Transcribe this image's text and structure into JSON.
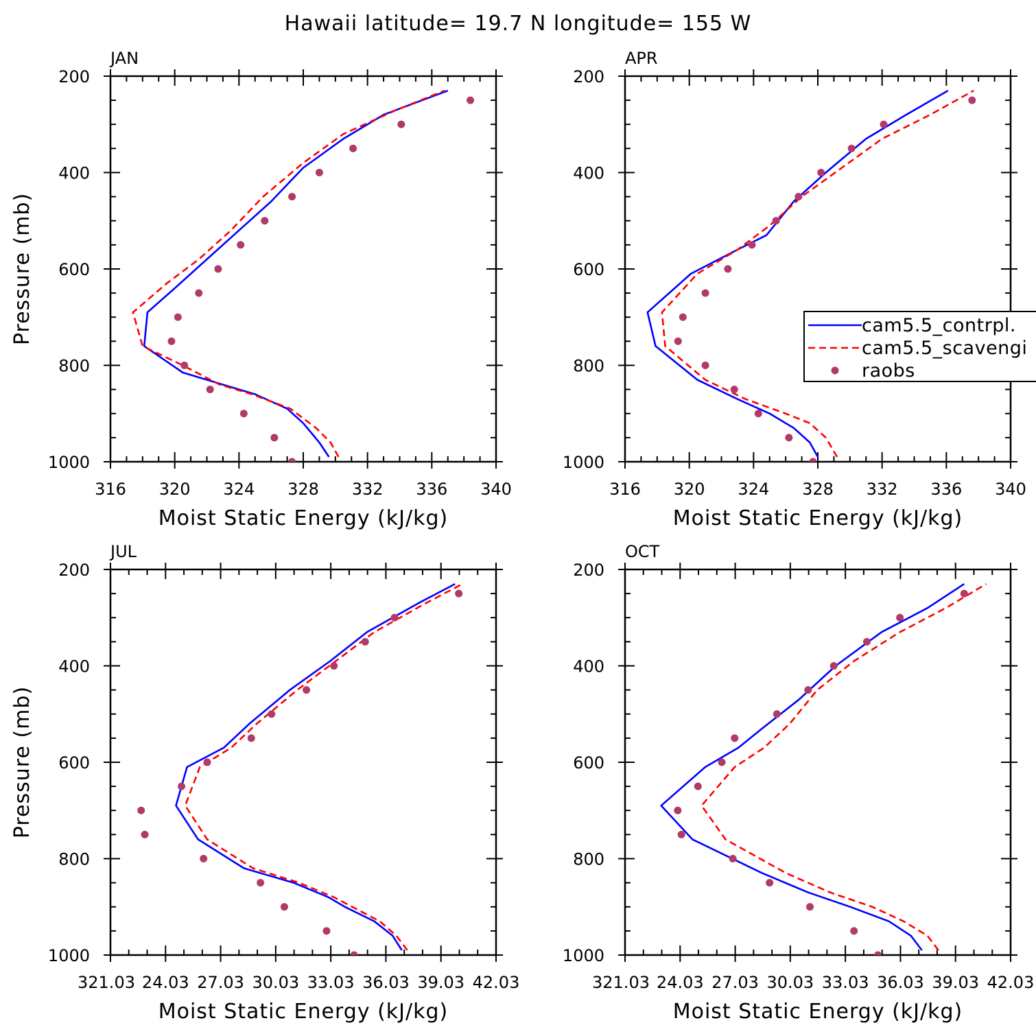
{
  "title": "Hawaii  latitude= 19.7 N longitude= 155 W",
  "colors": {
    "control": "#0000ff",
    "scaveng": "#ff0000",
    "raobs": "#b03a6a",
    "axes": "#000000"
  },
  "legend": {
    "items": [
      {
        "label": "cam5.5_contrpl.",
        "style": "solid-line",
        "color": "#0000ff"
      },
      {
        "label": "cam5.5_scavengi",
        "style": "dashed-line",
        "color": "#ff0000"
      },
      {
        "label": "raobs",
        "style": "marker",
        "color": "#b03a6a"
      }
    ],
    "placement": "right-middle of APR panel, clipped at image edge"
  },
  "chart_data": [
    {
      "type": "line",
      "panel": "JAN",
      "xlabel": "Moist Static Energy (kJ/kg)",
      "ylabel": "Pressure (mb)",
      "xlim": [
        316,
        340
      ],
      "ylim": [
        1000,
        200
      ],
      "y_inverted": true,
      "xticks": [
        "316",
        "320",
        "324",
        "328",
        "332",
        "336",
        "340"
      ],
      "yticks": [
        "200",
        "400",
        "600",
        "800",
        "1000"
      ],
      "series": [
        {
          "name": "cam5.5_contrpl.",
          "style": "solid",
          "points": [
            [
              329.6,
              990
            ],
            [
              329.0,
              960
            ],
            [
              328.0,
              920
            ],
            [
              327.0,
              890
            ],
            [
              325.0,
              860
            ],
            [
              323.0,
              840
            ],
            [
              320.5,
              815
            ],
            [
              318.1,
              760
            ],
            [
              318.3,
              690
            ],
            [
              320.0,
              640
            ],
            [
              322.0,
              580
            ],
            [
              324.0,
              520
            ],
            [
              326.0,
              460
            ],
            [
              328.0,
              390
            ],
            [
              330.5,
              330
            ],
            [
              333.0,
              280
            ],
            [
              337.0,
              230
            ]
          ]
        },
        {
          "name": "cam5.5_scavengi",
          "style": "dashed",
          "points": [
            [
              330.2,
              990
            ],
            [
              329.7,
              960
            ],
            [
              328.8,
              930
            ],
            [
              327.2,
              890
            ],
            [
              324.8,
              860
            ],
            [
              322.8,
              840
            ],
            [
              320.5,
              800
            ],
            [
              318.0,
              760
            ],
            [
              317.4,
              690
            ],
            [
              319.5,
              630
            ],
            [
              321.5,
              580
            ],
            [
              323.5,
              520
            ],
            [
              325.5,
              450
            ],
            [
              328.0,
              380
            ],
            [
              330.5,
              320
            ],
            [
              333.8,
              270
            ],
            [
              336.8,
              230
            ]
          ]
        },
        {
          "name": "raobs",
          "style": "markers",
          "points": [
            [
              338.4,
              250
            ],
            [
              334.1,
              300
            ],
            [
              331.1,
              350
            ],
            [
              329.0,
              400
            ],
            [
              327.3,
              450
            ],
            [
              325.6,
              500
            ],
            [
              324.1,
              550
            ],
            [
              322.7,
              600
            ],
            [
              321.5,
              650
            ],
            [
              320.2,
              700
            ],
            [
              319.8,
              750
            ],
            [
              320.6,
              800
            ],
            [
              322.2,
              850
            ],
            [
              324.3,
              900
            ],
            [
              326.2,
              950
            ],
            [
              327.3,
              1000
            ]
          ]
        }
      ]
    },
    {
      "type": "line",
      "panel": "APR",
      "xlabel": "Moist Static Energy (kJ/kg)",
      "ylabel": "",
      "xlim": [
        316,
        340
      ],
      "ylim": [
        1000,
        200
      ],
      "y_inverted": true,
      "xticks": [
        "316",
        "320",
        "324",
        "328",
        "332",
        "336",
        "340"
      ],
      "yticks": [
        "200",
        "400",
        "600",
        "800",
        "1000"
      ],
      "series": [
        {
          "name": "cam5.5_contrpl.",
          "style": "solid",
          "points": [
            [
              328.0,
              990
            ],
            [
              327.5,
              960
            ],
            [
              326.5,
              930
            ],
            [
              325.0,
              900
            ],
            [
              323.0,
              870
            ],
            [
              320.5,
              830
            ],
            [
              317.9,
              760
            ],
            [
              317.4,
              690
            ],
            [
              320.1,
              610
            ],
            [
              323.0,
              560
            ],
            [
              324.8,
              530
            ],
            [
              326.5,
              460
            ],
            [
              328.5,
              400
            ],
            [
              331.0,
              330
            ],
            [
              333.5,
              280
            ],
            [
              336.1,
              230
            ]
          ]
        },
        {
          "name": "cam5.5_scavengi",
          "style": "dashed",
          "points": [
            [
              329.2,
              990
            ],
            [
              328.5,
              950
            ],
            [
              327.5,
              920
            ],
            [
              326.0,
              900
            ],
            [
              323.5,
              870
            ],
            [
              321.0,
              830
            ],
            [
              318.5,
              760
            ],
            [
              318.3,
              690
            ],
            [
              320.5,
              610
            ],
            [
              323.0,
              560
            ],
            [
              325.0,
              510
            ],
            [
              327.0,
              450
            ],
            [
              329.5,
              390
            ],
            [
              332.0,
              330
            ],
            [
              335.0,
              280
            ],
            [
              337.7,
              230
            ]
          ]
        },
        {
          "name": "raobs",
          "style": "markers",
          "points": [
            [
              337.6,
              250
            ],
            [
              332.1,
              300
            ],
            [
              330.1,
              350
            ],
            [
              328.2,
              400
            ],
            [
              326.8,
              450
            ],
            [
              325.4,
              500
            ],
            [
              323.9,
              550
            ],
            [
              322.4,
              600
            ],
            [
              321.0,
              650
            ],
            [
              319.6,
              700
            ],
            [
              319.3,
              750
            ],
            [
              321.0,
              800
            ],
            [
              322.8,
              850
            ],
            [
              324.3,
              900
            ],
            [
              326.2,
              950
            ],
            [
              327.7,
              1000
            ]
          ]
        }
      ]
    },
    {
      "type": "line",
      "panel": "JUL",
      "xlabel": "Moist Static Energy (kJ/kg)",
      "ylabel": "Pressure (mb)",
      "xlim": [
        321.03,
        342.03
      ],
      "ylim": [
        1000,
        200
      ],
      "y_inverted": true,
      "xticks": [
        "321.03",
        "24.03",
        "27.03",
        "30.03",
        "33.03",
        "36.03",
        "39.03",
        "42.03"
      ],
      "yticks": [
        "200",
        "400",
        "600",
        "800",
        "1000"
      ],
      "series": [
        {
          "name": "cam5.5_contrpl.",
          "style": "solid",
          "points": [
            [
              336.9,
              990
            ],
            [
              336.4,
              960
            ],
            [
              335.4,
              930
            ],
            [
              333.8,
              900
            ],
            [
              332.9,
              880
            ],
            [
              331.0,
              850
            ],
            [
              328.3,
              820
            ],
            [
              325.8,
              760
            ],
            [
              324.6,
              690
            ],
            [
              325.2,
              610
            ],
            [
              327.2,
              570
            ],
            [
              328.6,
              520
            ],
            [
              330.8,
              450
            ],
            [
              333.0,
              390
            ],
            [
              335.0,
              330
            ],
            [
              337.8,
              270
            ],
            [
              339.8,
              230
            ]
          ]
        },
        {
          "name": "cam5.5_scavengi",
          "style": "dashed",
          "points": [
            [
              337.2,
              990
            ],
            [
              336.6,
              960
            ],
            [
              335.7,
              930
            ],
            [
              334.2,
              900
            ],
            [
              333.2,
              880
            ],
            [
              331.3,
              850
            ],
            [
              328.8,
              820
            ],
            [
              326.3,
              760
            ],
            [
              325.1,
              690
            ],
            [
              325.9,
              610
            ],
            [
              327.6,
              570
            ],
            [
              329.0,
              520
            ],
            [
              331.2,
              450
            ],
            [
              333.3,
              390
            ],
            [
              335.4,
              330
            ],
            [
              338.2,
              270
            ],
            [
              340.2,
              230
            ]
          ]
        },
        {
          "name": "raobs",
          "style": "markers",
          "points": [
            [
              340.0,
              250
            ],
            [
              336.5,
              300
            ],
            [
              334.9,
              350
            ],
            [
              333.2,
              400
            ],
            [
              331.7,
              450
            ],
            [
              329.8,
              500
            ],
            [
              328.7,
              550
            ],
            [
              326.3,
              600
            ],
            [
              324.9,
              650
            ],
            [
              322.7,
              700
            ],
            [
              322.9,
              750
            ],
            [
              326.1,
              800
            ],
            [
              329.2,
              850
            ],
            [
              330.5,
              900
            ],
            [
              332.8,
              950
            ],
            [
              334.3,
              1000
            ]
          ]
        }
      ]
    },
    {
      "type": "line",
      "panel": "OCT",
      "xlabel": "Moist Static Energy (kJ/kg)",
      "ylabel": "",
      "xlim": [
        321.03,
        342.03
      ],
      "ylim": [
        1000,
        200
      ],
      "y_inverted": true,
      "xticks": [
        "321.03",
        "24.03",
        "27.03",
        "30.03",
        "33.03",
        "36.03",
        "39.03",
        "42.03"
      ],
      "yticks": [
        "200",
        "400",
        "600",
        "800",
        "1000"
      ],
      "series": [
        {
          "name": "cam5.5_contrpl.",
          "style": "solid",
          "points": [
            [
              337.2,
              990
            ],
            [
              336.6,
              960
            ],
            [
              335.4,
              930
            ],
            [
              333.3,
              900
            ],
            [
              331.0,
              870
            ],
            [
              328.5,
              830
            ],
            [
              324.7,
              760
            ],
            [
              323.0,
              690
            ],
            [
              325.4,
              610
            ],
            [
              327.2,
              570
            ],
            [
              328.5,
              530
            ],
            [
              330.5,
              470
            ],
            [
              332.5,
              400
            ],
            [
              335.0,
              330
            ],
            [
              337.5,
              280
            ],
            [
              339.5,
              230
            ]
          ]
        },
        {
          "name": "cam5.5_scavengi",
          "style": "dashed",
          "points": [
            [
              338.1,
              990
            ],
            [
              337.5,
              960
            ],
            [
              336.2,
              930
            ],
            [
              334.5,
              900
            ],
            [
              332.2,
              870
            ],
            [
              329.8,
              830
            ],
            [
              326.5,
              760
            ],
            [
              325.2,
              690
            ],
            [
              327.0,
              610
            ],
            [
              328.6,
              570
            ],
            [
              330.0,
              520
            ],
            [
              331.5,
              450
            ],
            [
              333.5,
              390
            ],
            [
              336.0,
              330
            ],
            [
              338.5,
              280
            ],
            [
              340.7,
              230
            ]
          ]
        },
        {
          "name": "raobs",
          "style": "markers",
          "points": [
            [
              339.5,
              250
            ],
            [
              336.0,
              300
            ],
            [
              334.2,
              350
            ],
            [
              332.4,
              400
            ],
            [
              331.0,
              450
            ],
            [
              329.3,
              500
            ],
            [
              327.0,
              550
            ],
            [
              326.3,
              600
            ],
            [
              325.0,
              650
            ],
            [
              323.9,
              700
            ],
            [
              324.1,
              750
            ],
            [
              326.9,
              800
            ],
            [
              328.9,
              850
            ],
            [
              331.1,
              900
            ],
            [
              333.5,
              950
            ],
            [
              334.8,
              1000
            ]
          ]
        }
      ]
    }
  ]
}
